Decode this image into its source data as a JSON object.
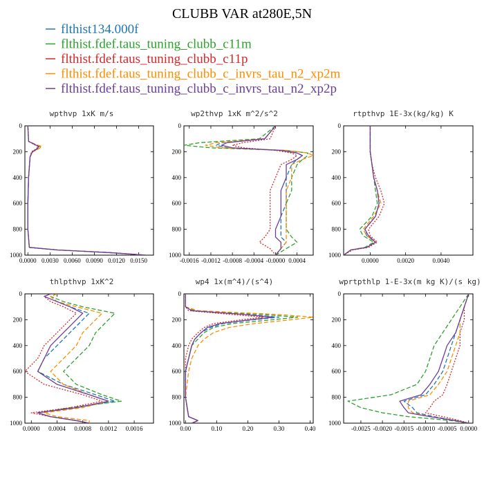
{
  "figure_title": "CLUBB VAR at280E,5N",
  "legend": [
    {
      "label": "flthist134.000f",
      "color": "#1f77b4"
    },
    {
      "label": "flthist.fdef.taus_tuning_clubb_c11m",
      "color": "#2ca02c"
    },
    {
      "label": "flthist.fdef.taus_tuning_clubb_c11p",
      "color": "#d62728"
    },
    {
      "label": "flthist.fdef.taus_tuning_clubb_c_invrs_tau_n2_xp2m",
      "color": "#ff8c00"
    },
    {
      "label": "flthist.fdef.taus_tuning_clubb_c_invrs_tau_n2_xp2p",
      "color": "#6a3d9a"
    }
  ],
  "colors": {
    "series": [
      "#1f77b4",
      "#2ca02c",
      "#d62728",
      "#ff8c00",
      "#6a3d9a"
    ],
    "dashes": [
      "6,3",
      "6,3",
      "2,2",
      "6,3",
      "none"
    ]
  },
  "chart_data": [
    {
      "type": "line",
      "title": "wpthvp   1xK m/s",
      "xlim": [
        -0.0004,
        0.017
      ],
      "ylim": [
        0,
        1000
      ],
      "y_inverted": true,
      "xticks": [
        0.0,
        0.003,
        0.006,
        0.009,
        0.012,
        0.015
      ],
      "xtick_labels": [
        "0.0000",
        "0.0030",
        "0.0060",
        "0.0090",
        "0.0120",
        "0.0150"
      ],
      "yticks": [
        0,
        200,
        400,
        600,
        800,
        1000
      ],
      "ytick_labels": [
        "0",
        "200",
        "400",
        "600",
        "800",
        "1000"
      ],
      "y": [
        0,
        120,
        140,
        160,
        180,
        200,
        240,
        400,
        600,
        800,
        940,
        960,
        980,
        1000
      ],
      "series": [
        {
          "values": [
            0.0,
            0.0001,
            0.0008,
            0.0015,
            0.0012,
            0.0006,
            0.0003,
            0.0001,
            0.0,
            0.0,
            0.0002,
            0.004,
            0.011,
            0.016
          ]
        },
        {
          "values": [
            0.0,
            0.0001,
            0.0009,
            0.0017,
            0.0013,
            0.0006,
            0.0003,
            0.0001,
            0.0,
            0.0,
            0.0002,
            0.004,
            0.011,
            0.016
          ]
        },
        {
          "values": [
            0.0,
            0.0001,
            0.0007,
            0.0014,
            0.0011,
            0.0005,
            0.0003,
            0.0001,
            0.0,
            0.0,
            0.0002,
            0.004,
            0.011,
            0.016
          ]
        },
        {
          "values": [
            0.0,
            0.0001,
            0.0009,
            0.0019,
            0.0014,
            0.0007,
            0.0003,
            0.0001,
            0.0,
            0.0,
            0.0002,
            0.004,
            0.011,
            0.016
          ]
        },
        {
          "values": [
            0.0,
            0.0001,
            0.0008,
            0.0015,
            0.0012,
            0.0006,
            0.0003,
            0.0001,
            0.0,
            0.0,
            0.0002,
            0.004,
            0.011,
            0.016
          ]
        }
      ]
    },
    {
      "type": "line",
      "title": "wp2thvp   1xK m^2/s^2",
      "xlim": [
        -0.0017,
        0.0007
      ],
      "ylim": [
        0,
        1000
      ],
      "y_inverted": true,
      "xticks": [
        -0.0016,
        -0.0012,
        -0.0008,
        -0.0004,
        0.0,
        0.0004
      ],
      "xtick_labels": [
        "-0.0016",
        "-0.0012",
        "-0.0008",
        "-0.0004",
        "-0.0000",
        "0.0004"
      ],
      "yticks": [
        0,
        200,
        400,
        600,
        800,
        1000
      ],
      "ytick_labels": [
        "0",
        "200",
        "400",
        "600",
        "800",
        "1000"
      ],
      "y": [
        0,
        100,
        130,
        150,
        170,
        190,
        210,
        230,
        260,
        300,
        400,
        500,
        600,
        700,
        800,
        860,
        900,
        950,
        1000
      ],
      "series": [
        {
          "values": [
            0.0,
            -0.0002,
            -0.001,
            -0.0011,
            -0.0009,
            0.0001,
            0.0004,
            0.0005,
            0.0004,
            0.0003,
            0.0002,
            0.0002,
            0.0002,
            0.0001,
            0.0001,
            0.0001,
            0.0002,
            0.0001,
            0.0
          ]
        },
        {
          "values": [
            0.0,
            -0.0003,
            -0.0014,
            -0.0017,
            -0.0012,
            0.0002,
            0.0006,
            0.0006,
            0.0005,
            0.0004,
            0.0003,
            0.0003,
            0.0002,
            0.0002,
            0.0002,
            0.0003,
            0.0004,
            0.0002,
            0.0
          ]
        },
        {
          "values": [
            0.0,
            -0.0001,
            -0.0006,
            -0.0008,
            -0.0006,
            0.0,
            0.0003,
            0.0004,
            0.0003,
            0.0001,
            0.0,
            -0.0001,
            -0.0001,
            -0.0001,
            -0.0001,
            -0.0002,
            -0.0003,
            -0.0001,
            0.0
          ]
        },
        {
          "values": [
            0.0,
            -0.0002,
            -0.0011,
            -0.0013,
            -0.001,
            0.0002,
            0.0006,
            0.0007,
            0.0005,
            0.0003,
            0.0003,
            0.0002,
            0.0002,
            0.0002,
            0.0002,
            0.0002,
            0.0002,
            0.0001,
            0.0
          ]
        },
        {
          "values": [
            0.0,
            -0.0002,
            -0.0009,
            -0.001,
            -0.0008,
            0.0001,
            0.0004,
            0.0005,
            0.0004,
            0.0002,
            0.0002,
            0.0001,
            0.0001,
            0.0001,
            0.0,
            0.0,
            0.0001,
            0.0001,
            0.0
          ]
        }
      ]
    },
    {
      "type": "line",
      "title": "rtpthvp   1E-3x(kg/kg) K",
      "xlim": [
        -0.0015,
        0.0058
      ],
      "ylim": [
        0,
        1000
      ],
      "y_inverted": true,
      "xticks": [
        0.0,
        0.002,
        0.004
      ],
      "xtick_labels": [
        "0.0000",
        "0.0020",
        "0.0040"
      ],
      "yticks": [
        0,
        200,
        400,
        600,
        800,
        1000
      ],
      "ytick_labels": [
        "0",
        "200",
        "400",
        "600",
        "800",
        "1000"
      ],
      "y": [
        0,
        100,
        200,
        300,
        400,
        500,
        600,
        700,
        800,
        850,
        900,
        940,
        960,
        1000
      ],
      "series": [
        {
          "values": [
            0.0,
            0.0,
            0.0,
            0.0001,
            0.0002,
            0.0004,
            0.0005,
            0.0003,
            -0.0003,
            -0.0002,
            0.0003,
            -0.0002,
            -0.0011,
            -0.0015
          ]
        },
        {
          "values": [
            0.0,
            0.0,
            0.0,
            0.0001,
            0.0002,
            0.0003,
            0.0004,
            0.0001,
            -0.0006,
            -0.0004,
            0.0002,
            -0.0003,
            -0.0011,
            -0.0015
          ]
        },
        {
          "values": [
            0.0,
            0.0,
            0.0,
            0.0001,
            0.0003,
            0.0006,
            0.0008,
            0.0005,
            -0.0001,
            0.0,
            0.0004,
            -0.0001,
            -0.001,
            -0.0015
          ]
        },
        {
          "values": [
            0.0,
            0.0,
            0.0,
            0.0001,
            0.0002,
            0.0004,
            0.0006,
            0.0002,
            -0.0004,
            -0.0002,
            0.0003,
            -0.0002,
            -0.0011,
            -0.0015
          ]
        },
        {
          "values": [
            0.0,
            0.0,
            0.0,
            0.0001,
            0.0002,
            0.0004,
            0.0005,
            0.0003,
            -0.0003,
            -0.0001,
            0.0003,
            -0.0002,
            -0.0011,
            -0.0015
          ]
        }
      ]
    },
    {
      "type": "line",
      "title": "thlpthvp   1xK^2",
      "xlim": [
        -0.0001,
        0.0019
      ],
      "ylim": [
        0,
        1000
      ],
      "y_inverted": true,
      "xticks": [
        0.0,
        0.0004,
        0.0008,
        0.0012,
        0.0016
      ],
      "xtick_labels": [
        "0.0000",
        "0.0004",
        "0.0008",
        "0.0012",
        "0.0016"
      ],
      "yticks": [
        0,
        200,
        400,
        600,
        800,
        1000
      ],
      "ytick_labels": [
        "0",
        "200",
        "400",
        "600",
        "800",
        "1000"
      ],
      "y": [
        0,
        20,
        60,
        100,
        150,
        200,
        250,
        300,
        400,
        500,
        600,
        700,
        780,
        830,
        880,
        920,
        950,
        980,
        1000
      ],
      "series": [
        {
          "values": [
            0.0004,
            0.0003,
            0.0004,
            0.0006,
            0.0009,
            0.0008,
            0.0007,
            0.0006,
            0.0004,
            0.0002,
            0.0001,
            0.0005,
            0.001,
            0.0013,
            0.0007,
            0.0001,
            0.0003,
            0.0007,
            0.0009
          ]
        },
        {
          "values": [
            0.0004,
            0.0003,
            0.0005,
            0.0008,
            0.0013,
            0.0012,
            0.0011,
            0.001,
            0.0009,
            0.0007,
            0.0005,
            0.0007,
            0.0011,
            0.0014,
            0.0006,
            0.0001,
            0.0003,
            0.0007,
            0.0009
          ]
        },
        {
          "values": [
            0.0003,
            0.0002,
            0.0003,
            0.0005,
            0.0007,
            0.0006,
            0.0005,
            0.0004,
            0.0002,
            0.0001,
            -0.0001,
            0.0002,
            0.0008,
            0.0011,
            0.0006,
            0.0,
            0.0003,
            0.0007,
            0.0009
          ]
        },
        {
          "values": [
            0.0004,
            0.0003,
            0.0004,
            0.0007,
            0.0011,
            0.001,
            0.0009,
            0.0008,
            0.0007,
            0.0005,
            0.0003,
            0.0005,
            0.0009,
            0.0012,
            0.0008,
            0.0002,
            0.0004,
            0.0009,
            0.0009
          ]
        },
        {
          "values": [
            0.0003,
            0.0002,
            0.0004,
            0.0006,
            0.0008,
            0.0007,
            0.0006,
            0.0005,
            0.0003,
            0.0002,
            0.0001,
            0.0004,
            0.0009,
            0.0012,
            0.0007,
            0.0001,
            0.0003,
            0.0007,
            0.0009
          ]
        }
      ]
    },
    {
      "type": "line",
      "title": "wp4   1x(m^4)/(s^4)",
      "xlim": [
        -0.005,
        0.41
      ],
      "ylim": [
        0,
        1000
      ],
      "y_inverted": true,
      "xticks": [
        0.0,
        0.1,
        0.2,
        0.3,
        0.4
      ],
      "xtick_labels": [
        "0.00",
        "0.10",
        "0.20",
        "0.30",
        "0.40"
      ],
      "yticks": [
        0,
        200,
        400,
        600,
        800,
        1000
      ],
      "ytick_labels": [
        "0",
        "200",
        "400",
        "600",
        "800",
        "1000"
      ],
      "y": [
        0,
        100,
        130,
        160,
        180,
        200,
        230,
        260,
        300,
        350,
        400,
        500,
        600,
        800,
        950,
        980,
        1000
      ],
      "series": [
        {
          "values": [
            0.0,
            0.0,
            0.02,
            0.2,
            0.3,
            0.22,
            0.12,
            0.08,
            0.05,
            0.03,
            0.02,
            0.01,
            0.0,
            0.0,
            0.01,
            0.04,
            0.02
          ]
        },
        {
          "values": [
            0.0,
            0.0,
            0.03,
            0.25,
            0.36,
            0.28,
            0.15,
            0.09,
            0.06,
            0.04,
            0.02,
            0.01,
            0.0,
            0.0,
            0.01,
            0.04,
            0.02
          ]
        },
        {
          "values": [
            0.0,
            0.0,
            0.01,
            0.15,
            0.25,
            0.18,
            0.09,
            0.06,
            0.04,
            0.02,
            0.01,
            0.0,
            0.0,
            0.0,
            0.01,
            0.04,
            0.02
          ]
        },
        {
          "values": [
            0.0,
            0.0,
            0.04,
            0.3,
            0.41,
            0.34,
            0.22,
            0.14,
            0.09,
            0.06,
            0.04,
            0.02,
            0.01,
            0.0,
            0.01,
            0.04,
            0.02
          ]
        },
        {
          "values": [
            0.0,
            0.0,
            0.02,
            0.19,
            0.28,
            0.21,
            0.11,
            0.07,
            0.05,
            0.03,
            0.02,
            0.01,
            0.0,
            0.0,
            0.01,
            0.04,
            0.02
          ]
        }
      ]
    },
    {
      "type": "line",
      "title": "wprtpthlp   1-E-3x(m kg K)/(s kg)",
      "xlim": [
        -0.0029,
        0.0001
      ],
      "ylim": [
        0,
        1000
      ],
      "y_inverted": true,
      "xticks": [
        -0.0025,
        -0.002,
        -0.0015,
        -0.001,
        -0.0005,
        0.0
      ],
      "xtick_labels": [
        "-0.0025",
        "-0.0020",
        "-0.0015",
        "-0.0010",
        "-0.0005",
        "0.0000"
      ],
      "yticks": [
        0,
        200,
        400,
        600,
        800,
        1000
      ],
      "ytick_labels": [
        "0",
        "200",
        "400",
        "600",
        "800",
        "1000"
      ],
      "y": [
        0,
        100,
        200,
        300,
        400,
        500,
        600,
        700,
        780,
        830,
        880,
        920,
        950,
        980,
        1000
      ],
      "series": [
        {
          "values": [
            0.0,
            -0.0001,
            -0.0002,
            -0.0003,
            -0.0004,
            -0.0005,
            -0.0006,
            -0.0008,
            -0.001,
            -0.0015,
            -0.0013,
            -0.0012,
            -0.0008,
            -0.0003,
            0.0
          ]
        },
        {
          "values": [
            0.0,
            -0.0002,
            -0.0004,
            -0.0006,
            -0.0008,
            -0.0009,
            -0.001,
            -0.0012,
            -0.0018,
            -0.0028,
            -0.0025,
            -0.002,
            -0.0014,
            -0.0004,
            0.0
          ]
        },
        {
          "values": [
            0.0,
            -0.0001,
            -0.0001,
            -0.0002,
            -0.0002,
            -0.0003,
            -0.0004,
            -0.0005,
            -0.0006,
            -0.0008,
            -0.0009,
            -0.001,
            -0.0006,
            -0.0002,
            0.0
          ]
        },
        {
          "values": [
            0.0,
            -0.0001,
            -0.0002,
            -0.0002,
            -0.0003,
            -0.0004,
            -0.0005,
            -0.0007,
            -0.0009,
            -0.0014,
            -0.0014,
            -0.0013,
            -0.0009,
            -0.0003,
            0.0
          ]
        },
        {
          "values": [
            0.0,
            -0.0001,
            -0.0002,
            -0.0003,
            -0.0005,
            -0.0006,
            -0.0007,
            -0.0009,
            -0.0011,
            -0.0016,
            -0.0015,
            -0.0014,
            -0.0009,
            -0.0003,
            0.0
          ]
        }
      ]
    }
  ]
}
